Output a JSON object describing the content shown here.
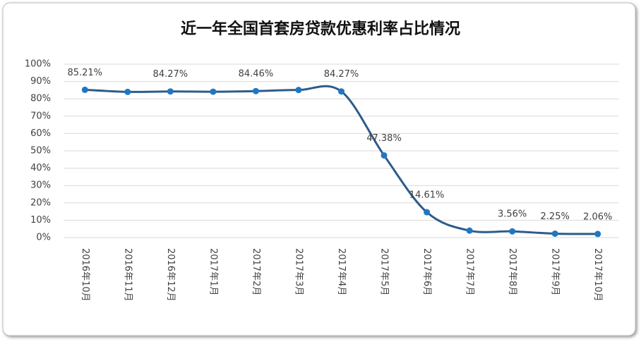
{
  "chart_data": {
    "type": "line",
    "title": "近一年全国首套房贷款优惠利率占比情况",
    "categories": [
      "2016年10月",
      "2016年11月",
      "2016年12月",
      "2017年1月",
      "2017年2月",
      "2017年3月",
      "2017年4月",
      "2017年5月",
      "2017年6月",
      "2017年7月",
      "2017年8月",
      "2017年9月",
      "2017年10月"
    ],
    "values": [
      85.21,
      84.0,
      84.27,
      84.1,
      84.46,
      85.1,
      84.27,
      47.38,
      14.61,
      4.0,
      3.56,
      2.25,
      2.06
    ],
    "value_labels": [
      "85.21%",
      null,
      "84.27%",
      null,
      "84.46%",
      null,
      "84.27%",
      "47.38%",
      "14.61%",
      null,
      "3.56%",
      "2.25%",
      "2.06%"
    ],
    "color": "#2e5b8a",
    "marker_color": "#1f77c4",
    "ylim": [
      0,
      100
    ],
    "yticks": [
      {
        "value": 0,
        "label": "0%"
      },
      {
        "value": 10,
        "label": "10%"
      },
      {
        "value": 20,
        "label": "20%"
      },
      {
        "value": 30,
        "label": "30%"
      },
      {
        "value": 40,
        "label": "40%"
      },
      {
        "value": 50,
        "label": "50%"
      },
      {
        "value": 60,
        "label": "60%"
      },
      {
        "value": 70,
        "label": "70%"
      },
      {
        "value": 80,
        "label": "80%"
      },
      {
        "value": 90,
        "label": "90%"
      },
      {
        "value": 100,
        "label": "100%"
      }
    ],
    "grid": true
  }
}
